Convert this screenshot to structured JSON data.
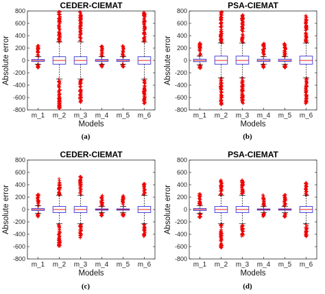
{
  "chart_data": [
    {
      "type": "box",
      "caption": "(a)",
      "title": "CEDER-CIEMAT",
      "xlabel": "Models",
      "ylabel": "Absolute error",
      "ylim": [
        -800,
        800
      ],
      "yticks": [
        -800,
        -600,
        -400,
        -200,
        0,
        200,
        400,
        600,
        800
      ],
      "categories": [
        "m_1",
        "m_2",
        "m_3",
        "m_4",
        "m_5",
        "m_6"
      ],
      "boxes": [
        {
          "q1": -15,
          "median": 0,
          "q3": 15,
          "whisker_low": -60,
          "whisker_high": 60,
          "outlier_min": -120,
          "outlier_max": 250
        },
        {
          "q1": -60,
          "median": 0,
          "q3": 60,
          "whisker_low": -300,
          "whisker_high": 300,
          "outlier_min": -790,
          "outlier_max": 790
        },
        {
          "q1": -60,
          "median": 0,
          "q3": 60,
          "whisker_low": -300,
          "whisker_high": 300,
          "outlier_min": -680,
          "outlier_max": 790
        },
        {
          "q1": -15,
          "median": 0,
          "q3": 15,
          "whisker_low": -60,
          "whisker_high": 60,
          "outlier_min": -110,
          "outlier_max": 240
        },
        {
          "q1": -15,
          "median": 0,
          "q3": 15,
          "whisker_low": -60,
          "whisker_high": 60,
          "outlier_min": -110,
          "outlier_max": 240
        },
        {
          "q1": -60,
          "median": 0,
          "q3": 60,
          "whisker_low": -300,
          "whisker_high": 300,
          "outlier_min": -700,
          "outlier_max": 790
        }
      ],
      "box_color": "#3333dd",
      "median_color": "#dd2222",
      "outlier_color": "#ee0000"
    },
    {
      "type": "box",
      "caption": "(b)",
      "title": "PSA-CIEMAT",
      "xlabel": "Models",
      "ylabel": "Absolute error",
      "ylim": [
        -800,
        800
      ],
      "yticks": [
        -800,
        -600,
        -400,
        -200,
        0,
        200,
        400,
        600,
        800
      ],
      "categories": [
        "m_1",
        "m_2",
        "m_3",
        "m_4",
        "m_5",
        "m_6"
      ],
      "boxes": [
        {
          "q1": -20,
          "median": 0,
          "q3": 20,
          "whisker_low": -70,
          "whisker_high": 70,
          "outlier_min": -130,
          "outlier_max": 300
        },
        {
          "q1": -60,
          "median": 0,
          "q3": 70,
          "whisker_low": -280,
          "whisker_high": 280,
          "outlier_min": -720,
          "outlier_max": 790
        },
        {
          "q1": -60,
          "median": 0,
          "q3": 70,
          "whisker_low": -280,
          "whisker_high": 280,
          "outlier_min": -700,
          "outlier_max": 740
        },
        {
          "q1": -15,
          "median": 0,
          "q3": 20,
          "whisker_low": -60,
          "whisker_high": 60,
          "outlier_min": -120,
          "outlier_max": 280
        },
        {
          "q1": -15,
          "median": 0,
          "q3": 20,
          "whisker_low": -60,
          "whisker_high": 60,
          "outlier_min": -120,
          "outlier_max": 280
        },
        {
          "q1": -60,
          "median": 0,
          "q3": 70,
          "whisker_low": -280,
          "whisker_high": 280,
          "outlier_min": -700,
          "outlier_max": 730
        }
      ],
      "box_color": "#3333dd",
      "median_color": "#dd2222",
      "outlier_color": "#ee0000"
    },
    {
      "type": "box",
      "caption": "(c)",
      "title": "CEDER-CIEMAT",
      "xlabel": "Models",
      "ylabel": "Absolute error",
      "ylim": [
        -800,
        800
      ],
      "yticks": [
        -800,
        -600,
        -400,
        -200,
        0,
        200,
        400,
        600,
        800
      ],
      "categories": [
        "m_1",
        "m_2",
        "m_3",
        "m_4",
        "m_5",
        "m_6"
      ],
      "boxes": [
        {
          "q1": -15,
          "median": 0,
          "q3": 15,
          "whisker_low": -60,
          "whisker_high": 60,
          "outlier_min": -120,
          "outlier_max": 250
        },
        {
          "q1": -50,
          "median": 0,
          "q3": 50,
          "whisker_low": -230,
          "whisker_high": 230,
          "outlier_min": -600,
          "outlier_max": 500
        },
        {
          "q1": -50,
          "median": 0,
          "q3": 50,
          "whisker_low": -230,
          "whisker_high": 230,
          "outlier_min": -460,
          "outlier_max": 540
        },
        {
          "q1": -10,
          "median": 0,
          "q3": 10,
          "whisker_low": -50,
          "whisker_high": 50,
          "outlier_min": -110,
          "outlier_max": 230
        },
        {
          "q1": -10,
          "median": 0,
          "q3": 10,
          "whisker_low": -50,
          "whisker_high": 50,
          "outlier_min": -110,
          "outlier_max": 230
        },
        {
          "q1": -50,
          "median": 0,
          "q3": 50,
          "whisker_low": -230,
          "whisker_high": 230,
          "outlier_min": -440,
          "outlier_max": 430
        }
      ],
      "box_color": "#3333dd",
      "median_color": "#dd2222",
      "outlier_color": "#ee0000"
    },
    {
      "type": "box",
      "caption": "(d)",
      "title": "PSA-CIEMAT",
      "xlabel": "Models",
      "ylabel": "Absolute error",
      "ylim": [
        -800,
        800
      ],
      "yticks": [
        -800,
        -600,
        -400,
        -200,
        0,
        200,
        400,
        600,
        800
      ],
      "categories": [
        "m_1",
        "m_2",
        "m_3",
        "m_4",
        "m_5",
        "m_6"
      ],
      "boxes": [
        {
          "q1": -15,
          "median": 0,
          "q3": 15,
          "whisker_low": -60,
          "whisker_high": 60,
          "outlier_min": -130,
          "outlier_max": 260
        },
        {
          "q1": -50,
          "median": 0,
          "q3": 50,
          "whisker_low": -230,
          "whisker_high": 230,
          "outlier_min": -620,
          "outlier_max": 480
        },
        {
          "q1": -50,
          "median": 0,
          "q3": 50,
          "whisker_low": -230,
          "whisker_high": 230,
          "outlier_min": -440,
          "outlier_max": 480
        },
        {
          "q1": -10,
          "median": 0,
          "q3": 10,
          "whisker_low": -50,
          "whisker_high": 50,
          "outlier_min": -120,
          "outlier_max": 240
        },
        {
          "q1": -10,
          "median": 0,
          "q3": 10,
          "whisker_low": -50,
          "whisker_high": 50,
          "outlier_min": -120,
          "outlier_max": 240
        },
        {
          "q1": -50,
          "median": 0,
          "q3": 50,
          "whisker_low": -230,
          "whisker_high": 230,
          "outlier_min": -440,
          "outlier_max": 440
        }
      ],
      "box_color": "#3333dd",
      "median_color": "#dd2222",
      "outlier_color": "#ee0000"
    }
  ]
}
